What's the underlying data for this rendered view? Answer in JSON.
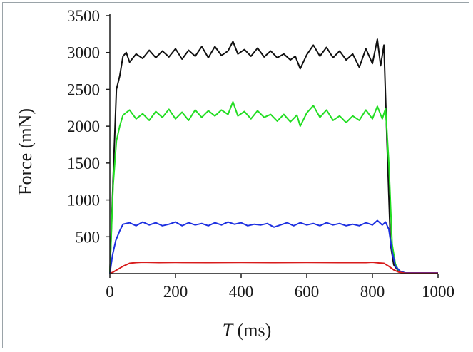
{
  "chart_data": {
    "type": "line",
    "title": "",
    "xlabel_var": "T",
    "xlabel_unit": " (ms)",
    "ylabel": "Force (mN)",
    "xlim": [
      0,
      1000
    ],
    "ylim": [
      0,
      3500
    ],
    "x_ticks": [
      0,
      200,
      400,
      600,
      800,
      1000
    ],
    "y_ticks": [
      500,
      1000,
      1500,
      2000,
      2500,
      3000,
      3500
    ],
    "grid": false,
    "legend": "none",
    "series": [
      {
        "color": "#111111",
        "points": [
          [
            0,
            0
          ],
          [
            10,
            1300
          ],
          [
            20,
            2500
          ],
          [
            30,
            2680
          ],
          [
            40,
            2950
          ],
          [
            50,
            3000
          ],
          [
            60,
            2870
          ],
          [
            80,
            2980
          ],
          [
            100,
            2920
          ],
          [
            120,
            3030
          ],
          [
            140,
            2930
          ],
          [
            160,
            3020
          ],
          [
            180,
            2940
          ],
          [
            200,
            3050
          ],
          [
            220,
            2910
          ],
          [
            240,
            3030
          ],
          [
            260,
            2950
          ],
          [
            280,
            3080
          ],
          [
            300,
            2930
          ],
          [
            320,
            3080
          ],
          [
            340,
            2960
          ],
          [
            360,
            3020
          ],
          [
            375,
            3150
          ],
          [
            390,
            2980
          ],
          [
            410,
            3040
          ],
          [
            430,
            2950
          ],
          [
            450,
            3060
          ],
          [
            470,
            2940
          ],
          [
            490,
            3020
          ],
          [
            510,
            2930
          ],
          [
            530,
            2980
          ],
          [
            550,
            2900
          ],
          [
            565,
            2950
          ],
          [
            580,
            2780
          ],
          [
            600,
            2970
          ],
          [
            620,
            3100
          ],
          [
            640,
            2950
          ],
          [
            660,
            3070
          ],
          [
            680,
            2930
          ],
          [
            700,
            3020
          ],
          [
            720,
            2900
          ],
          [
            740,
            2980
          ],
          [
            760,
            2800
          ],
          [
            780,
            3050
          ],
          [
            800,
            2850
          ],
          [
            815,
            3180
          ],
          [
            825,
            2820
          ],
          [
            835,
            3100
          ],
          [
            845,
            1700
          ],
          [
            855,
            400
          ],
          [
            865,
            120
          ],
          [
            880,
            30
          ],
          [
            900,
            10
          ],
          [
            1000,
            10
          ]
        ]
      },
      {
        "color": "#22dd22",
        "points": [
          [
            0,
            0
          ],
          [
            10,
            1200
          ],
          [
            20,
            1800
          ],
          [
            30,
            2000
          ],
          [
            40,
            2150
          ],
          [
            60,
            2220
          ],
          [
            80,
            2100
          ],
          [
            100,
            2170
          ],
          [
            120,
            2080
          ],
          [
            140,
            2200
          ],
          [
            160,
            2120
          ],
          [
            180,
            2230
          ],
          [
            200,
            2100
          ],
          [
            220,
            2190
          ],
          [
            240,
            2080
          ],
          [
            260,
            2220
          ],
          [
            280,
            2120
          ],
          [
            300,
            2210
          ],
          [
            320,
            2140
          ],
          [
            340,
            2220
          ],
          [
            360,
            2160
          ],
          [
            375,
            2330
          ],
          [
            390,
            2140
          ],
          [
            410,
            2200
          ],
          [
            430,
            2100
          ],
          [
            450,
            2210
          ],
          [
            470,
            2120
          ],
          [
            490,
            2160
          ],
          [
            510,
            2070
          ],
          [
            530,
            2160
          ],
          [
            550,
            2060
          ],
          [
            570,
            2150
          ],
          [
            580,
            2000
          ],
          [
            600,
            2180
          ],
          [
            620,
            2280
          ],
          [
            640,
            2120
          ],
          [
            660,
            2220
          ],
          [
            680,
            2080
          ],
          [
            700,
            2140
          ],
          [
            720,
            2050
          ],
          [
            740,
            2140
          ],
          [
            760,
            2080
          ],
          [
            780,
            2220
          ],
          [
            800,
            2100
          ],
          [
            815,
            2270
          ],
          [
            830,
            2100
          ],
          [
            840,
            2240
          ],
          [
            850,
            1500
          ],
          [
            860,
            400
          ],
          [
            870,
            130
          ],
          [
            880,
            40
          ],
          [
            900,
            10
          ],
          [
            1000,
            10
          ]
        ]
      },
      {
        "color": "#1c2fe0",
        "points": [
          [
            0,
            0
          ],
          [
            8,
            250
          ],
          [
            18,
            450
          ],
          [
            30,
            580
          ],
          [
            40,
            670
          ],
          [
            60,
            690
          ],
          [
            80,
            650
          ],
          [
            100,
            700
          ],
          [
            120,
            660
          ],
          [
            140,
            690
          ],
          [
            160,
            650
          ],
          [
            180,
            670
          ],
          [
            200,
            700
          ],
          [
            220,
            650
          ],
          [
            240,
            690
          ],
          [
            260,
            660
          ],
          [
            280,
            680
          ],
          [
            300,
            650
          ],
          [
            320,
            690
          ],
          [
            340,
            660
          ],
          [
            360,
            700
          ],
          [
            380,
            670
          ],
          [
            400,
            690
          ],
          [
            420,
            650
          ],
          [
            440,
            670
          ],
          [
            460,
            660
          ],
          [
            480,
            680
          ],
          [
            500,
            630
          ],
          [
            520,
            660
          ],
          [
            540,
            690
          ],
          [
            560,
            650
          ],
          [
            580,
            690
          ],
          [
            600,
            660
          ],
          [
            620,
            680
          ],
          [
            640,
            650
          ],
          [
            660,
            690
          ],
          [
            680,
            660
          ],
          [
            700,
            680
          ],
          [
            720,
            650
          ],
          [
            740,
            670
          ],
          [
            760,
            650
          ],
          [
            780,
            690
          ],
          [
            800,
            660
          ],
          [
            815,
            720
          ],
          [
            830,
            660
          ],
          [
            840,
            700
          ],
          [
            850,
            600
          ],
          [
            860,
            300
          ],
          [
            870,
            100
          ],
          [
            885,
            30
          ],
          [
            900,
            10
          ],
          [
            1000,
            10
          ]
        ]
      },
      {
        "color": "#d81c1c",
        "points": [
          [
            0,
            0
          ],
          [
            10,
            20
          ],
          [
            25,
            60
          ],
          [
            40,
            100
          ],
          [
            60,
            140
          ],
          [
            80,
            150
          ],
          [
            100,
            155
          ],
          [
            150,
            150
          ],
          [
            200,
            152
          ],
          [
            300,
            150
          ],
          [
            400,
            152
          ],
          [
            500,
            150
          ],
          [
            600,
            152
          ],
          [
            700,
            150
          ],
          [
            780,
            150
          ],
          [
            800,
            155
          ],
          [
            820,
            145
          ],
          [
            835,
            140
          ],
          [
            850,
            100
          ],
          [
            865,
            50
          ],
          [
            880,
            20
          ],
          [
            900,
            5
          ],
          [
            1000,
            5
          ]
        ]
      }
    ]
  }
}
